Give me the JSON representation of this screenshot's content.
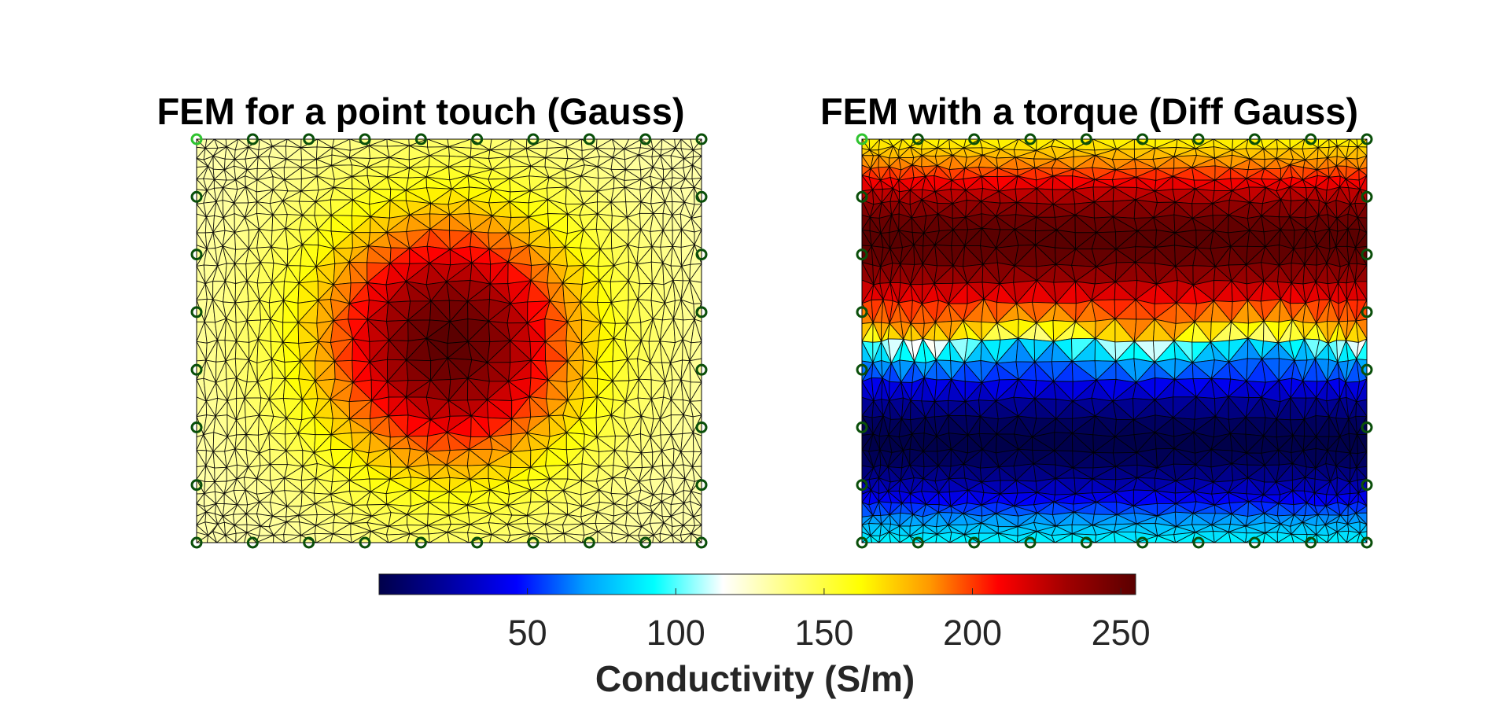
{
  "chart_data": {
    "type": "heatmap",
    "colormap": [
      "#00004a",
      "#0000a0",
      "#0000ff",
      "#00a0ff",
      "#00ffff",
      "#ffffff",
      "#ffff7a",
      "#ffff00",
      "#ff9900",
      "#ff0000",
      "#a00000",
      "#5a0000"
    ],
    "colorbar": {
      "label": "Conductivity (S/m)",
      "range": [
        0,
        255
      ],
      "ticks": [
        50,
        100,
        150,
        200,
        250
      ],
      "location": "bottom"
    },
    "panels": [
      {
        "title": "FEM for a point touch (Gauss)",
        "field": "gaussian",
        "background_value": 130,
        "peak_value": 255,
        "electrodes": 32
      },
      {
        "title": "FEM with a torque (Diff Gauss)",
        "field": "difference-of-gaussians",
        "min_value": 0,
        "max_value": 255,
        "electrodes": 32
      }
    ]
  }
}
